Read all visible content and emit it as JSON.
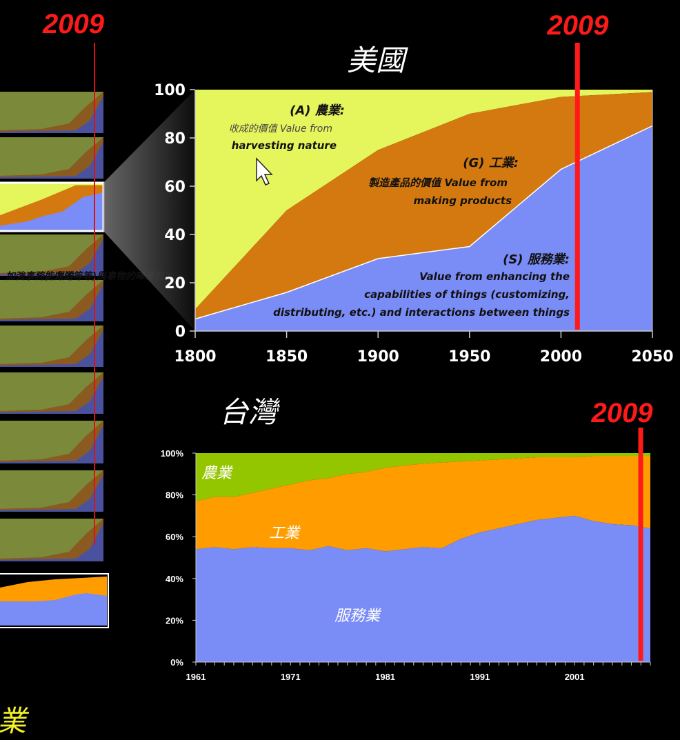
{
  "colors": {
    "service": "#7a8cf5",
    "industry_us": "#d4790f",
    "agriculture_us": "#e5f55c",
    "industry_tw": "#ff9d00",
    "agriculture_tw": "#94c600",
    "marker": "#ff1a1a"
  },
  "markers": {
    "left": "2009",
    "us": "2009",
    "tw": "2009"
  },
  "left_panel": {
    "text": "加強事務能力的",
    "text2": "，運送等等)與事物的嗶硬能力",
    "bottom_label": "業"
  },
  "chart_data": [
    {
      "type": "area",
      "title": "美國",
      "x": [
        1800,
        1850,
        1900,
        1950,
        2000,
        2050
      ],
      "xlim": [
        1800,
        2050
      ],
      "ylim": [
        0,
        100
      ],
      "yticks": [
        "0",
        "20",
        "40",
        "60",
        "80",
        "100"
      ],
      "xticks": [
        "1800",
        "1850",
        "1900",
        "1950",
        "2000",
        "2050"
      ],
      "marker_year": 2009,
      "series": [
        {
          "name": "(S) 服務業:",
          "values_cumulative": [
            5,
            16,
            30,
            35,
            67,
            85
          ]
        },
        {
          "name": "(G) 工業:",
          "values_cumulative": [
            9,
            50,
            75,
            90,
            97,
            99
          ]
        },
        {
          "name": "(A) 農業:",
          "values_cumulative": [
            100,
            100,
            100,
            100,
            100,
            100
          ]
        }
      ],
      "annotations": {
        "agri_title": "(A) 農業:",
        "agri_line1": "收成的價值 Value from",
        "agri_line2": "harvesting nature",
        "ind_title": "(G) 工業:",
        "ind_line1": "製造產品的價值 Value from",
        "ind_line2": "making products",
        "svc_title": "(S) 服務業:",
        "svc_line1": "Value from enhancing the",
        "svc_line2": "capabilities of things (customizing,",
        "svc_line3": "distributing, etc.) and interactions between things"
      }
    },
    {
      "type": "area",
      "title": "台灣",
      "xlim": [
        1961,
        2009
      ],
      "ylim": [
        0,
        100
      ],
      "yticks": [
        "0%",
        "20%",
        "40%",
        "60%",
        "80%",
        "100%"
      ],
      "xticks": [
        "1961",
        "1971",
        "1981",
        "1991",
        "2001"
      ],
      "marker_year": 2009,
      "labels": {
        "agriculture": "農業",
        "industry": "工業",
        "service": "服務業"
      },
      "x": [
        1961,
        1963,
        1965,
        1967,
        1969,
        1971,
        1973,
        1975,
        1977,
        1979,
        1981,
        1983,
        1985,
        1987,
        1989,
        1991,
        1993,
        1995,
        1997,
        1999,
        2001,
        2003,
        2005,
        2007,
        2009
      ],
      "series": [
        {
          "name": "服務業",
          "values_cumulative": [
            54,
            55,
            54,
            55,
            54.5,
            54.5,
            53.5,
            55.5,
            53.5,
            54.5,
            53,
            54,
            55,
            54.5,
            59,
            62,
            64,
            66,
            68,
            69,
            70,
            67.5,
            66,
            65.5,
            64
          ]
        },
        {
          "name": "工業",
          "values_cumulative": [
            77,
            79,
            79,
            81,
            83,
            85,
            87,
            88,
            90,
            91,
            93,
            94,
            95,
            95.5,
            96,
            96.5,
            97,
            97.5,
            98,
            98,
            98,
            98.5,
            98.5,
            98.5,
            98.5
          ]
        },
        {
          "name": "農業",
          "values_cumulative": [
            100,
            100,
            100,
            100,
            100,
            100,
            100,
            100,
            100,
            100,
            100,
            100,
            100,
            100,
            100,
            100,
            100,
            100,
            100,
            100,
            100,
            100,
            100,
            100,
            100
          ]
        }
      ]
    }
  ]
}
